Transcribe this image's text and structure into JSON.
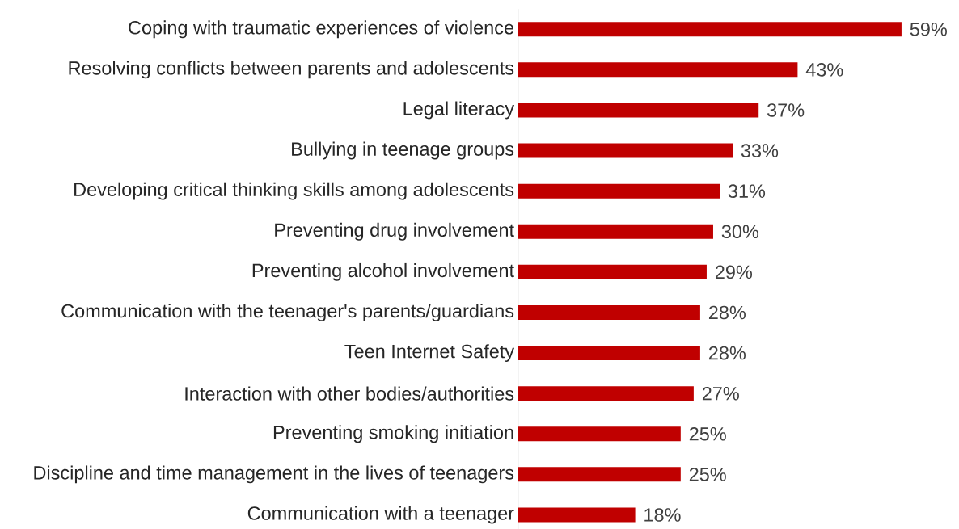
{
  "chart_data": {
    "type": "bar",
    "orientation": "horizontal",
    "categories": [
      "Coping with traumatic experiences of violence",
      "Resolving conflicts between parents and adolescents",
      "Legal literacy",
      "Bullying in teenage groups",
      "Developing critical thinking skills among adolescents",
      "Preventing drug involvement",
      "Preventing alcohol involvement",
      "Communication with the teenager's parents/guardians",
      "Teen Internet Safety",
      "Interaction with other bodies/authorities",
      "Preventing smoking initiation",
      "Discipline and time management in the lives of teenagers",
      "Communication with a teenager"
    ],
    "values": [
      59,
      43,
      37,
      33,
      31,
      30,
      29,
      28,
      28,
      27,
      25,
      25,
      18
    ],
    "value_labels": [
      "59%",
      "43%",
      "37%",
      "33%",
      "31%",
      "30%",
      "29%",
      "28%",
      "28%",
      "27%",
      "25%",
      "25%",
      "18%"
    ],
    "color": "#c00000"
  }
}
